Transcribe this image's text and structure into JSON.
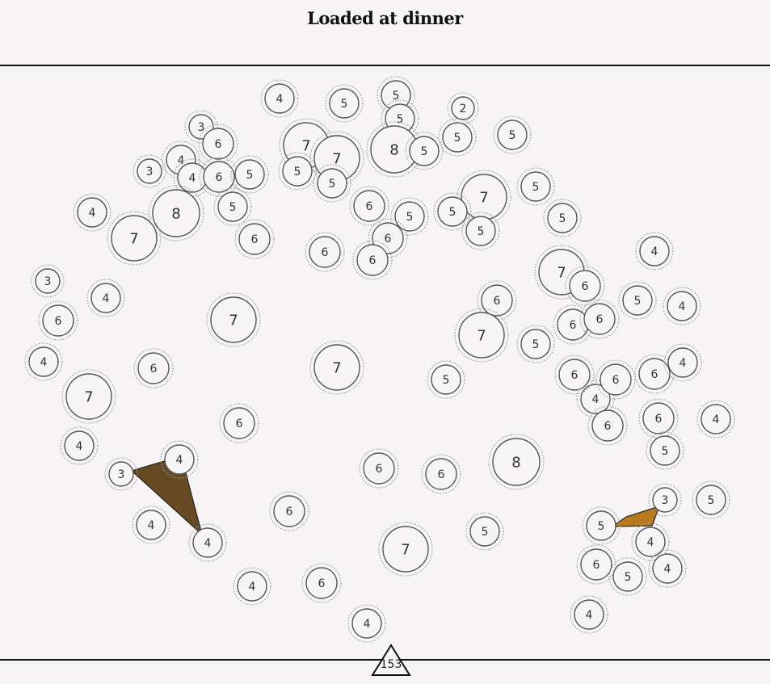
{
  "title": "Loaded at dinner",
  "counter": "153",
  "colors": {
    "background": "#f6f4f5",
    "ring": "#555555",
    "dotted_ring": "#9a9a9a",
    "selection_dark": "#674a22",
    "selection_gold": "#b8791f"
  },
  "plates": [
    {
      "n": "4"
    },
    {
      "n": "5"
    },
    {
      "n": "5"
    },
    {
      "n": "5"
    },
    {
      "n": "2"
    },
    {
      "n": "5"
    },
    {
      "n": "5"
    },
    {
      "n": "3"
    },
    {
      "n": "6"
    },
    {
      "n": "7"
    },
    {
      "n": "7"
    },
    {
      "n": "8"
    },
    {
      "n": "5"
    },
    {
      "n": "3"
    },
    {
      "n": "4"
    },
    {
      "n": "4"
    },
    {
      "n": "6"
    },
    {
      "n": "5"
    },
    {
      "n": "5"
    },
    {
      "n": "5"
    },
    {
      "n": "5"
    },
    {
      "n": "7"
    },
    {
      "n": "5"
    },
    {
      "n": "6"
    },
    {
      "n": "5"
    },
    {
      "n": "4"
    },
    {
      "n": "8"
    },
    {
      "n": "5"
    },
    {
      "n": "6"
    },
    {
      "n": "7"
    },
    {
      "n": "6"
    },
    {
      "n": "5"
    },
    {
      "n": "6"
    },
    {
      "n": "6"
    },
    {
      "n": "5"
    },
    {
      "n": "6"
    },
    {
      "n": "4"
    },
    {
      "n": "3"
    },
    {
      "n": "4"
    },
    {
      "n": "7"
    },
    {
      "n": "7"
    },
    {
      "n": "6"
    },
    {
      "n": "6"
    },
    {
      "n": "5"
    },
    {
      "n": "4"
    },
    {
      "n": "7"
    },
    {
      "n": "6"
    },
    {
      "n": "4"
    },
    {
      "n": "6"
    },
    {
      "n": "7"
    },
    {
      "n": "5"
    },
    {
      "n": "6"
    },
    {
      "n": "6"
    },
    {
      "n": "7"
    },
    {
      "n": "4"
    },
    {
      "n": "4"
    },
    {
      "n": "6"
    },
    {
      "n": "4"
    },
    {
      "n": "6"
    },
    {
      "n": "6"
    },
    {
      "n": "6"
    },
    {
      "n": "4"
    },
    {
      "n": "5"
    },
    {
      "n": "3"
    },
    {
      "n": "4"
    },
    {
      "n": "4"
    },
    {
      "n": "6"
    },
    {
      "n": "6"
    },
    {
      "n": "8"
    },
    {
      "n": "5"
    },
    {
      "n": "5"
    },
    {
      "n": "5"
    },
    {
      "n": "7"
    },
    {
      "n": "3"
    },
    {
      "n": "4"
    },
    {
      "n": "6"
    },
    {
      "n": "4"
    },
    {
      "n": "5"
    },
    {
      "n": "4"
    },
    {
      "n": "6"
    },
    {
      "n": "6"
    },
    {
      "n": "4"
    },
    {
      "n": "4"
    },
    {
      "n": "6"
    },
    {
      "n": "5"
    },
    {
      "n": "4"
    }
  ],
  "selections": [
    {
      "color": "#674a22"
    },
    {
      "color": "#b8791f"
    }
  ]
}
